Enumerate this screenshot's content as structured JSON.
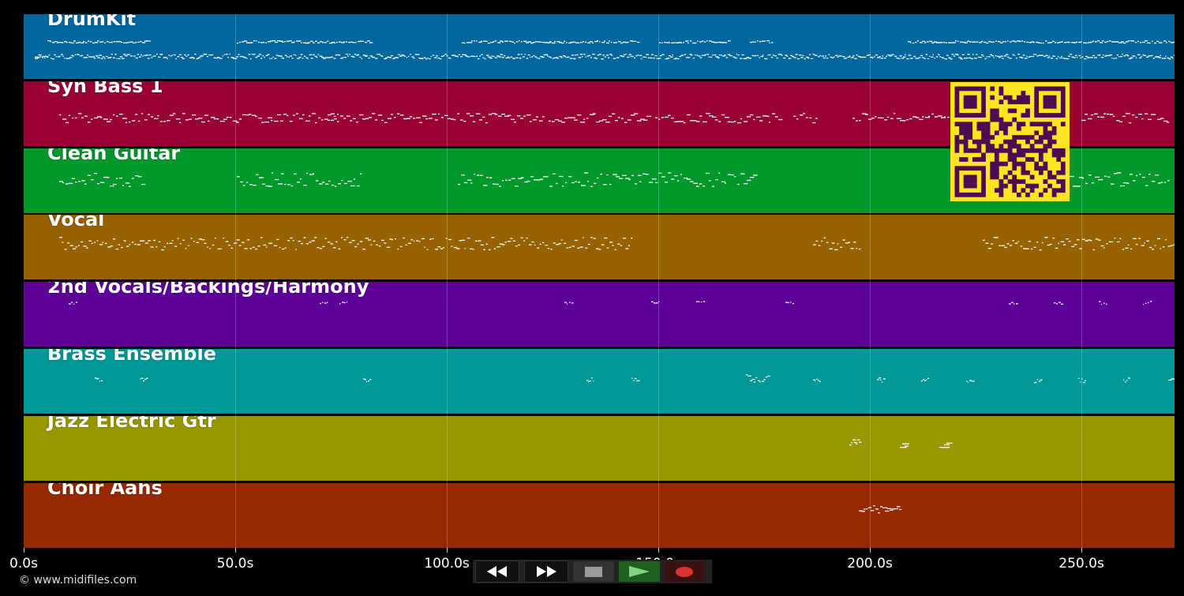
{
  "tracks": [
    {
      "name": "DrumKit",
      "color": "#00679e"
    },
    {
      "name": "Syn Bass 1",
      "color": "#990033"
    },
    {
      "name": "Clean Guitar",
      "color": "#00982b"
    },
    {
      "name": "Vocal",
      "color": "#966200"
    },
    {
      "name": "2nd Vocals/Backings/Harmony",
      "color": "#5c0099"
    },
    {
      "name": "Brass Ensemble",
      "color": "#009797"
    },
    {
      "name": "Jazz Electric Gtr",
      "color": "#979700"
    },
    {
      "name": "Choir Aahs",
      "color": "#962900"
    }
  ],
  "time_axis": {
    "ticks": [
      "0.0s",
      "50.0s",
      "100.0s",
      "150.0s",
      "200.0s",
      "250.0s"
    ],
    "tick_values": [
      0,
      50,
      100,
      150,
      200,
      250
    ],
    "max": 272
  },
  "copyright": "© www.midifiles.com",
  "transport": {
    "rewind_icon": "rewind-icon",
    "fast_forward_icon": "fast-forward-icon",
    "stop_icon": "stop-icon",
    "play_icon": "play-icon",
    "record_icon": "record-icon"
  },
  "qr_code": {
    "fg": "#4b0c52",
    "bg": "#ffe521"
  }
}
